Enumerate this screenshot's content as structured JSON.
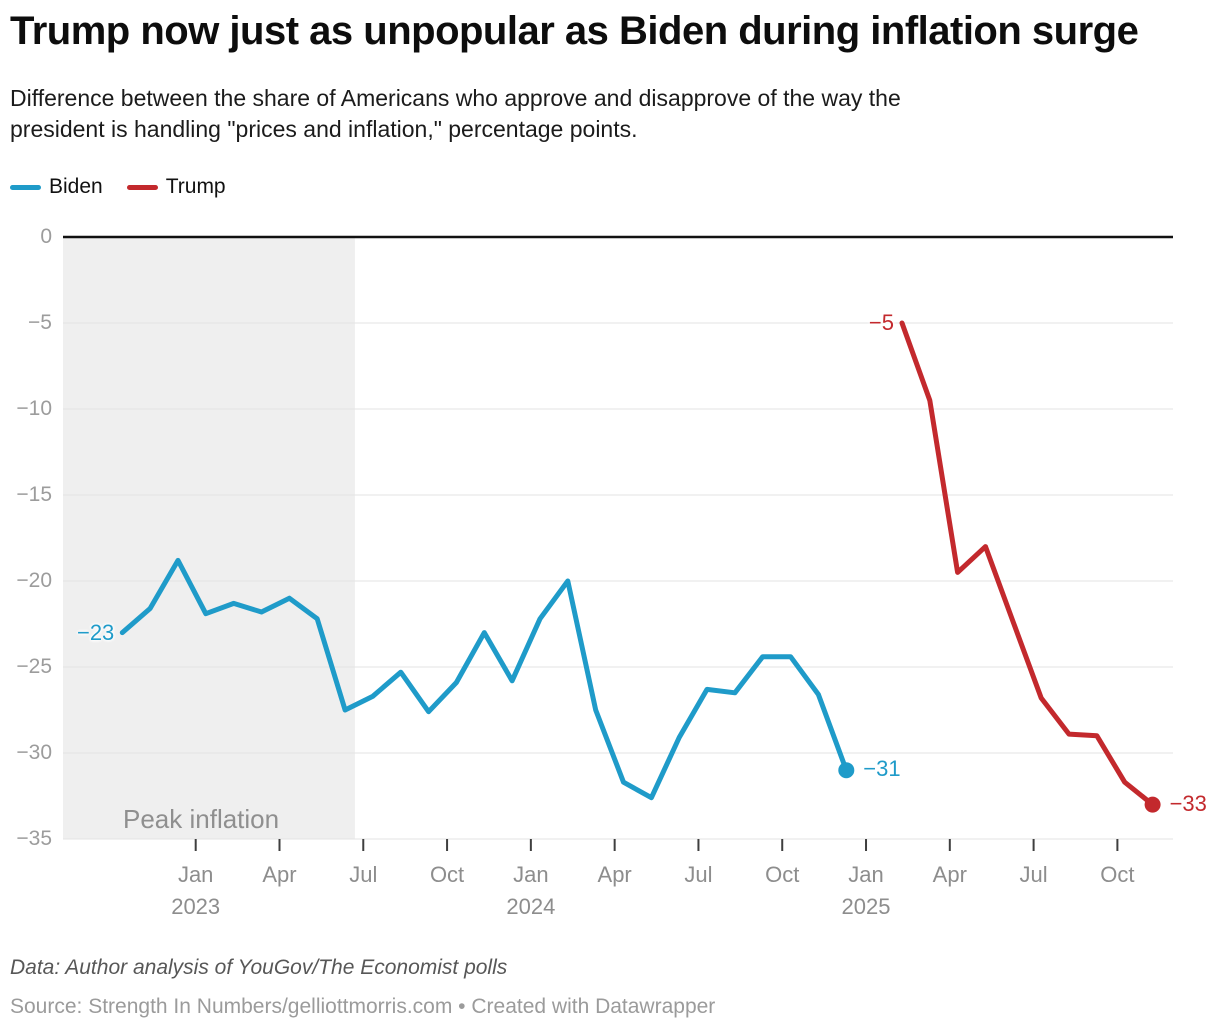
{
  "header": {
    "title": "Trump now just as unpopular as Biden during inflation surge",
    "subtitle_lines": [
      "Difference between the share of Americans who approve and disapprove of the way the",
      "president is handling \"prices and inflation,\" percentage points."
    ]
  },
  "legend": {
    "items": [
      {
        "label": "Biden",
        "color": "#1f9bc9"
      },
      {
        "label": "Trump",
        "color": "#c3292d"
      }
    ]
  },
  "chart_data": {
    "type": "line",
    "title": "Trump now just as unpopular as Biden during inflation surge",
    "unit": "percentage points (approve minus disapprove)",
    "ylim": [
      -35,
      0
    ],
    "grid": true,
    "y_axis": {
      "ticks": [
        {
          "v": 0,
          "label": "0"
        },
        {
          "v": -5,
          "label": "−5"
        },
        {
          "v": -10,
          "label": "−10"
        },
        {
          "v": -15,
          "label": "−15"
        },
        {
          "v": -20,
          "label": "−20"
        },
        {
          "v": -25,
          "label": "−25"
        },
        {
          "v": -30,
          "label": "−30"
        },
        {
          "v": -35,
          "label": "−35"
        }
      ]
    },
    "x_axis": {
      "ticks": [
        {
          "m": 0,
          "label": "Jan",
          "year": "2023"
        },
        {
          "m": 3,
          "label": "Apr"
        },
        {
          "m": 6,
          "label": "Jul"
        },
        {
          "m": 9,
          "label": "Oct"
        },
        {
          "m": 12,
          "label": "Jan",
          "year": "2024"
        },
        {
          "m": 15,
          "label": "Apr"
        },
        {
          "m": 18,
          "label": "Jul"
        },
        {
          "m": 21,
          "label": "Oct"
        },
        {
          "m": 24,
          "label": "Jan",
          "year": "2025"
        },
        {
          "m": 27,
          "label": "Apr"
        },
        {
          "m": 30,
          "label": "Jul"
        },
        {
          "m": 33,
          "label": "Oct"
        }
      ]
    },
    "series": [
      {
        "name": "Biden",
        "color": "#1f9bc9",
        "start_label": "−23",
        "end_label": "−31",
        "months": [
          "Oct 2022",
          "Nov 2022",
          "Dec 2022",
          "Jan 2023",
          "Feb 2023",
          "Mar 2023",
          "Apr 2023",
          "May 2023",
          "Jun 2023",
          "Jul 2023",
          "Aug 2023",
          "Sep 2023",
          "Oct 2023",
          "Nov 2023",
          "Dec 2023",
          "Jan 2024",
          "Feb 2024",
          "Mar 2024",
          "Apr 2024",
          "May 2024",
          "Jun 2024",
          "Jul 2024",
          "Aug 2024",
          "Sep 2024",
          "Oct 2024",
          "Nov 2024",
          "Dec 2024"
        ],
        "values": [
          -23,
          -21.6,
          -18.8,
          -21.9,
          -21.3,
          -21.8,
          -21.0,
          -22.2,
          -27.5,
          -26.7,
          -25.3,
          -27.6,
          -25.9,
          -23.0,
          -25.8,
          -22.2,
          -20.0,
          -27.5,
          -31.7,
          -32.6,
          -29.1,
          -26.3,
          -26.5,
          -24.4,
          -24.4,
          -26.6,
          -31
        ]
      },
      {
        "name": "Trump",
        "color": "#c3292d",
        "start_label": "−5",
        "end_label": "−33",
        "months": [
          "Feb 2025",
          "Mar 2025",
          "Apr 2025",
          "May 2025",
          "Jun 2025",
          "Jul 2025",
          "Aug 2025",
          "Sep 2025",
          "Oct 2025",
          "Nov 2025"
        ],
        "values": [
          -5,
          -9.5,
          -19.5,
          -18.0,
          -22.4,
          -26.8,
          -28.9,
          -29.0,
          -31.7,
          -33
        ]
      }
    ],
    "annotations": {
      "band": {
        "label": "Peak inflation",
        "start": "chart left edge",
        "end": "late Jun 2023",
        "end_months_since_jan_2023": 5.7
      }
    }
  },
  "footer": {
    "data_line": "Data: Author analysis of YouGov/The Economist polls",
    "source_line": "Source: Strength In Numbers/gelliottmorris.com • Created with Datawrapper"
  }
}
